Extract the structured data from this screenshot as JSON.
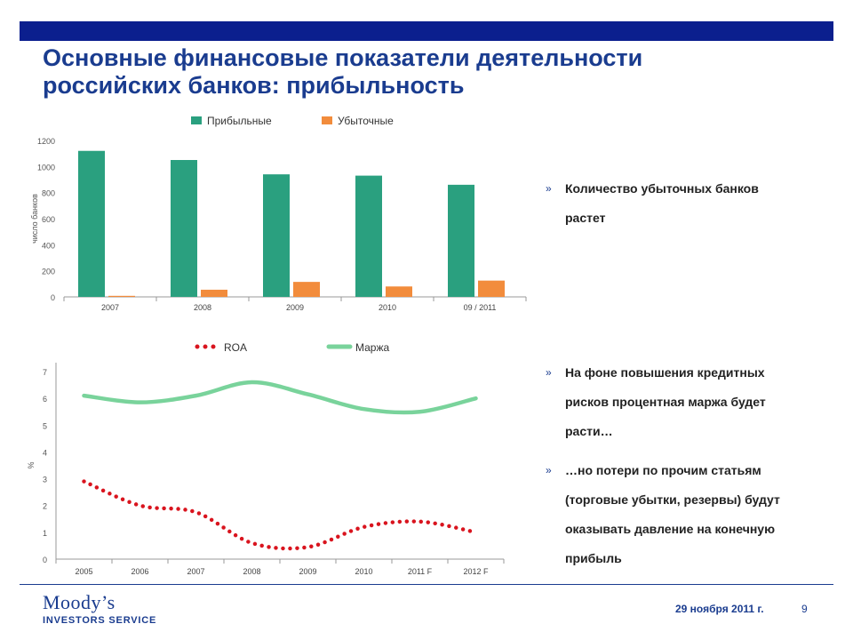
{
  "slide": {
    "title_line1": "Основные финансовые показатели деятельности",
    "title_line2": "российских банков: прибыльность",
    "date": "29 ноября 2011 г.",
    "page_number": "9",
    "logo_main": "Moody’s",
    "logo_sub": "INVESTORS SERVICE",
    "bar_color": "#0b1f8e",
    "title_color": "#1a3c8f"
  },
  "bullets": [
    {
      "mark": "»",
      "lines": [
        "Количество убыточных банков",
        "растет"
      ]
    },
    {
      "mark": "»",
      "lines": [
        "На фоне повышения кредитных",
        "рисков процентная маржа будет",
        "расти…"
      ]
    },
    {
      "mark": "»",
      "lines": [
        "…но потери по прочим статьям",
        "(торговые убытки, резервы) будут",
        "оказывать давление на конечную",
        "прибыль"
      ]
    }
  ],
  "chart_data": [
    {
      "type": "bar",
      "categories": [
        "2007",
        "2008",
        "2009",
        "2010",
        "09 / 2011"
      ],
      "series": [
        {
          "name": "Прибыльные",
          "values": [
            1120,
            1050,
            940,
            930,
            860
          ],
          "color": "#2aa07f"
        },
        {
          "name": "Убыточные",
          "values": [
            8,
            55,
            115,
            80,
            125
          ],
          "color": "#f28c3c"
        }
      ],
      "ylabel": "число банков",
      "yticks": [
        0,
        200,
        400,
        600,
        800,
        1000,
        1200
      ],
      "ylim": [
        0,
        1200
      ],
      "grid": false,
      "legend_placement": "top"
    },
    {
      "type": "line",
      "categories": [
        "2005",
        "2006",
        "2007",
        "2008",
        "2009",
        "2010",
        "2011 F",
        "2012 F"
      ],
      "series": [
        {
          "name": "ROA",
          "values": [
            2.9,
            2.0,
            1.75,
            0.6,
            0.45,
            1.2,
            1.4,
            1.0
          ],
          "color": "#d9141e",
          "style": "dotted"
        },
        {
          "name": "Маржа",
          "values": [
            6.1,
            5.85,
            6.1,
            6.6,
            6.15,
            5.6,
            5.5,
            6.0
          ],
          "color": "#79d39b",
          "style": "solid"
        }
      ],
      "ylabel": "%",
      "yticks": [
        0,
        1,
        2,
        3,
        4,
        5,
        6,
        7
      ],
      "ylim": [
        0,
        7
      ],
      "grid": false,
      "legend_placement": "top"
    }
  ]
}
